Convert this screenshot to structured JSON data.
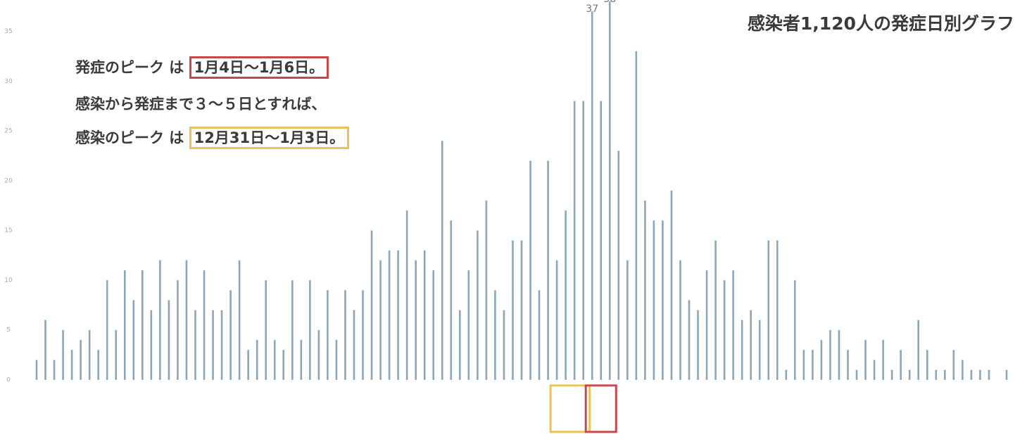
{
  "chart_data": {
    "type": "bar",
    "title": "感染者1,120人の発症日別グラフ",
    "annotations": [
      "発症のピーク は",
      "1月4日～1月6日。",
      "感染から発症まで３～５日とすれば、",
      "感染のピーク は",
      "12月31日～1月3日。"
    ],
    "categories": [
      null,
      null,
      null,
      null,
      null,
      null,
      null,
      null,
      null,
      null,
      null,
      null,
      null,
      null,
      null,
      null,
      null,
      null,
      null,
      null,
      null,
      null,
      null,
      null,
      null,
      null,
      null,
      null,
      null,
      null,
      null,
      null,
      null,
      null,
      null,
      null,
      null,
      null,
      null,
      null,
      null,
      null,
      null,
      null,
      null,
      null,
      null,
      null,
      null,
      null,
      null,
      null,
      null,
      null,
      null,
      null,
      null,
      null,
      null,
      null,
      null,
      null,
      null,
      null,
      null,
      null,
      null,
      null,
      null,
      null,
      null,
      null,
      null,
      null,
      null,
      null,
      null,
      null,
      null,
      null,
      null,
      null,
      null,
      null,
      null,
      null,
      null,
      null,
      null,
      null,
      null,
      null,
      null,
      null,
      null,
      null,
      null,
      null,
      null,
      null,
      null,
      null,
      null,
      null,
      null,
      null,
      null,
      null,
      null,
      null,
      null
    ],
    "values": [
      2,
      6,
      2,
      5,
      3,
      4,
      5,
      3,
      10,
      5,
      11,
      8,
      11,
      7,
      12,
      8,
      10,
      12,
      7,
      11,
      7,
      7,
      9,
      12,
      3,
      4,
      10,
      4,
      3,
      10,
      4,
      10,
      5,
      9,
      4,
      9,
      7,
      9,
      15,
      12,
      13,
      13,
      17,
      12,
      13,
      11,
      24,
      16,
      7,
      11,
      15,
      18,
      9,
      7,
      14,
      14,
      22,
      9,
      22,
      12,
      17,
      28,
      28,
      37,
      28,
      38,
      23,
      12,
      33,
      18,
      16,
      16,
      19,
      12,
      8,
      7,
      11,
      14,
      10,
      11,
      6,
      7,
      6,
      14,
      14,
      1,
      10,
      3,
      3,
      4,
      5,
      5,
      3,
      1,
      4,
      2,
      4,
      1,
      3,
      1,
      6,
      3,
      1,
      1,
      3,
      2,
      1,
      1,
      1,
      0,
      1
    ],
    "color": "#8ba6b9",
    "ylim": [
      0,
      38
    ],
    "yticks": [
      0,
      5,
      10,
      15,
      20,
      25,
      30,
      35
    ],
    "grid": false
  }
}
